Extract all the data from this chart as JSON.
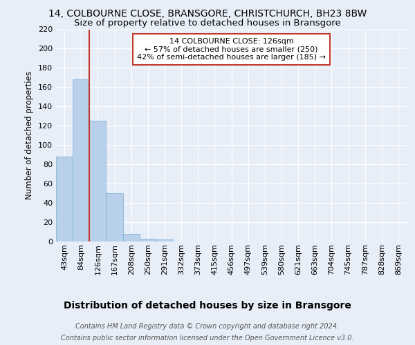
{
  "title": "14, COLBOURNE CLOSE, BRANSGORE, CHRISTCHURCH, BH23 8BW",
  "subtitle": "Size of property relative to detached houses in Bransgore",
  "xlabel": "Distribution of detached houses by size in Bransgore",
  "ylabel": "Number of detached properties",
  "footer_line1": "Contains HM Land Registry data © Crown copyright and database right 2024.",
  "footer_line2": "Contains public sector information licensed under the Open Government Licence v3.0.",
  "bar_labels": [
    "43sqm",
    "84sqm",
    "126sqm",
    "167sqm",
    "208sqm",
    "250sqm",
    "291sqm",
    "332sqm",
    "373sqm",
    "415sqm",
    "456sqm",
    "497sqm",
    "539sqm",
    "580sqm",
    "621sqm",
    "663sqm",
    "704sqm",
    "745sqm",
    "787sqm",
    "828sqm",
    "869sqm"
  ],
  "bar_values": [
    88,
    168,
    125,
    50,
    8,
    3,
    2,
    0,
    0,
    0,
    0,
    0,
    0,
    0,
    0,
    0,
    0,
    0,
    0,
    0,
    0
  ],
  "bar_color": "#b8d0ea",
  "bar_edge_color": "#7aadd4",
  "vline_x_idx": 2,
  "vline_color": "#c0392b",
  "annotation_line1": "14 COLBOURNE CLOSE: 126sqm",
  "annotation_line2": "← 57% of detached houses are smaller (250)",
  "annotation_line3": "42% of semi-detached houses are larger (185) →",
  "annotation_box_color": "#c0392b",
  "annotation_fill_color": "#ffffff",
  "ylim": [
    0,
    220
  ],
  "yticks": [
    0,
    20,
    40,
    60,
    80,
    100,
    120,
    140,
    160,
    180,
    200,
    220
  ],
  "bg_color": "#e8eef8",
  "plot_bg_color": "#e8eef8",
  "grid_color": "#ffffff",
  "title_fontsize": 10,
  "subtitle_fontsize": 9.5,
  "xlabel_fontsize": 10,
  "ylabel_fontsize": 8.5,
  "tick_fontsize": 8,
  "annotation_fontsize": 8,
  "footer_fontsize": 7
}
